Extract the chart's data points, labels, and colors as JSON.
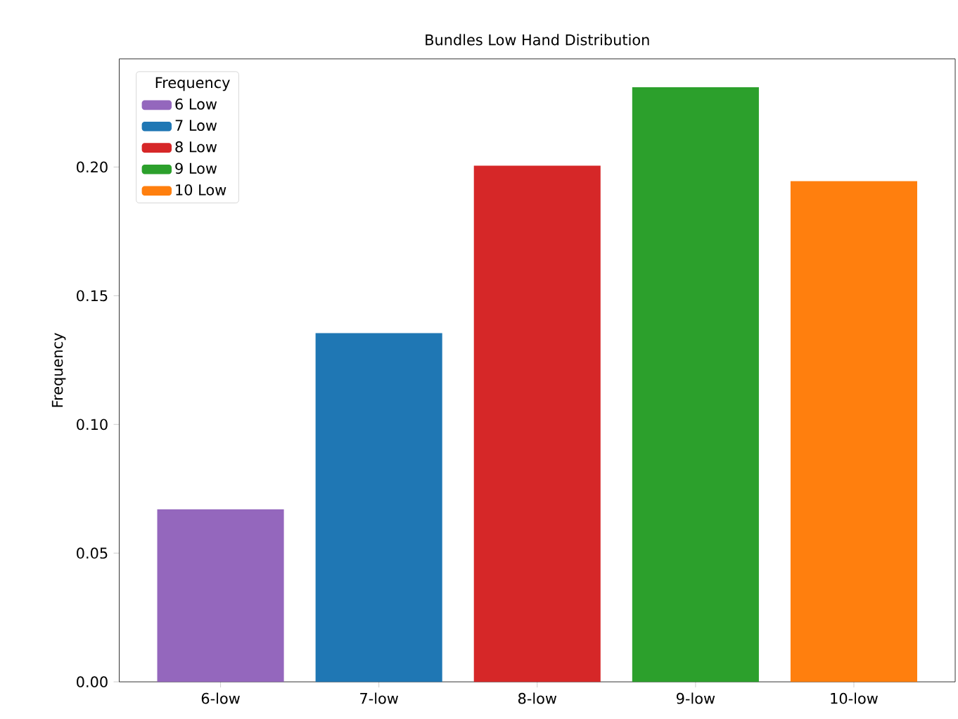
{
  "chart_data": {
    "type": "bar",
    "title": "Bundles Low Hand Distribution",
    "ylabel": "Frequency",
    "legend_title": "Frequency",
    "categories": [
      "6-low",
      "7-low",
      "8-low",
      "9-low",
      "10-low"
    ],
    "series": [
      {
        "name": "6 Low",
        "color": "#9467bd",
        "values": [
          0.067,
          null,
          null,
          null,
          null
        ]
      },
      {
        "name": "7 Low",
        "color": "#1f77b4",
        "values": [
          null,
          0.1355,
          null,
          null,
          null
        ]
      },
      {
        "name": "8 Low",
        "color": "#d62728",
        "values": [
          null,
          null,
          0.2005,
          null,
          null
        ]
      },
      {
        "name": "9 Low",
        "color": "#2ca02c",
        "values": [
          null,
          null,
          null,
          0.231,
          null
        ]
      },
      {
        "name": "10 Low",
        "color": "#ff7f0e",
        "values": [
          null,
          null,
          null,
          null,
          0.1945
        ]
      }
    ],
    "ylim": [
      0,
      0.242
    ],
    "yticks": [
      {
        "value": 0,
        "label": "0.00"
      },
      {
        "value": 0.05,
        "label": "0.05"
      },
      {
        "value": 0.1,
        "label": "0.10"
      },
      {
        "value": 0.15,
        "label": "0.15"
      },
      {
        "value": 0.2,
        "label": "0.20"
      }
    ],
    "legend": "top left",
    "grid": false
  }
}
